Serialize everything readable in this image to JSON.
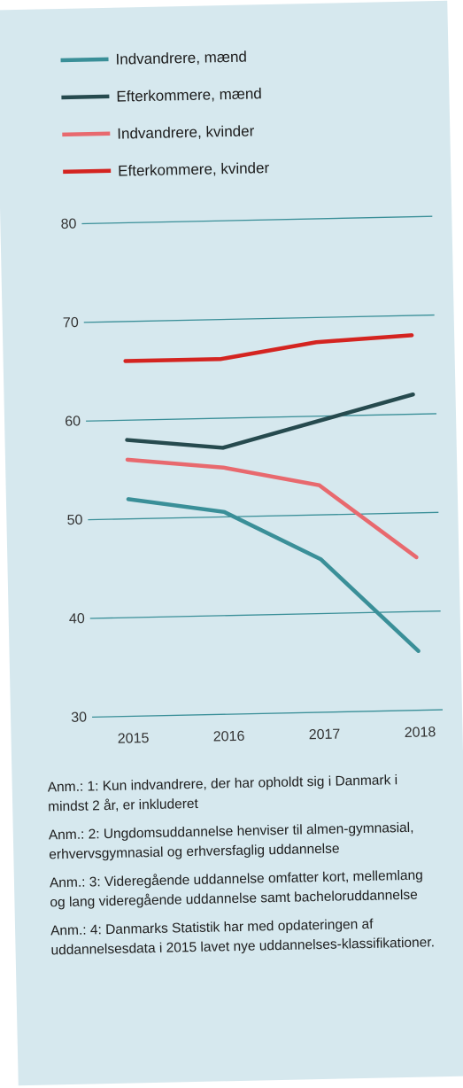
{
  "chart_data": {
    "type": "line",
    "x": [
      2015,
      2016,
      2017,
      2018
    ],
    "categories": [
      "2015",
      "2016",
      "2017",
      "2018"
    ],
    "ylim": [
      30,
      80
    ],
    "yticks": [
      "30",
      "40",
      "50",
      "60",
      "70",
      "80"
    ],
    "grid": true,
    "legend_position": "top-left",
    "series": [
      {
        "name": "Indvandrere, mænd",
        "values": [
          52,
          50.5,
          45.5,
          36
        ],
        "color": "#3a8f98"
      },
      {
        "name": "Efterkommere, mænd",
        "values": [
          58,
          57,
          59.5,
          62
        ],
        "color": "#264a4e"
      },
      {
        "name": "Indvandrere, kvinder",
        "values": [
          56,
          55,
          53,
          45.5
        ],
        "color": "#e8696e"
      },
      {
        "name": "Efterkommere, kvinder",
        "values": [
          66,
          66,
          67.5,
          68
        ],
        "color": "#d42420"
      }
    ],
    "gridline_color": "#3a8f98"
  },
  "notes": [
    "Anm.: 1: Kun indvandrere, der har opholdt sig i Danmark i mindst 2 år, er inkluderet",
    "Anm.: 2: Ungdomsuddannelse henviser til almen-gymnasial, erhvervsgymnasial og erhversfaglig uddannelse",
    "Anm.: 3: Videregående uddannelse omfatter kort, mellemlang og lang videregående uddannelse samt bacheloruddannelse",
    "Anm.: 4: Danmarks Statistik har med opdateringen af uddannelsesdata i 2015 lavet nye uddannelses-klassifikationer."
  ]
}
